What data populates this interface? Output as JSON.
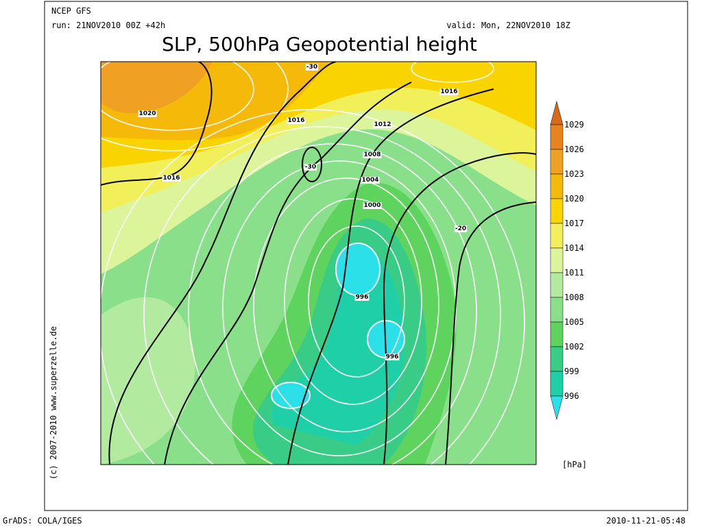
{
  "header": {
    "model": "NCEP GFS",
    "run": "run: 21NOV2010 00Z +42h",
    "valid": "valid: Mon, 22NOV2010 18Z",
    "title": "SLP, 500hPa Geopotential height"
  },
  "colorbar": {
    "levels": [
      1029,
      1026,
      1023,
      1020,
      1017,
      1014,
      1011,
      1008,
      1005,
      1002,
      999,
      996
    ],
    "colors": [
      "#d66a1a",
      "#e8841f",
      "#f0a124",
      "#f5b90a",
      "#fad400",
      "#f2f05a",
      "#dcf59a",
      "#b2eba0",
      "#8ae08a",
      "#5ed45e",
      "#38cc86",
      "#1fcfa8",
      "#2ce0ea"
    ],
    "unit": "[hPa]"
  },
  "contour_labels": [
    "1020",
    "1016",
    "1016",
    "1016",
    "1012",
    "1008",
    "1004",
    "1000",
    "996",
    "996",
    "-30",
    "-30",
    "-20"
  ],
  "footer": {
    "left": "GrADS: COLA/IGES",
    "right": "2010-11-21-05:48",
    "credit": "(c) 2007-2010 www.superzelle.de"
  }
}
